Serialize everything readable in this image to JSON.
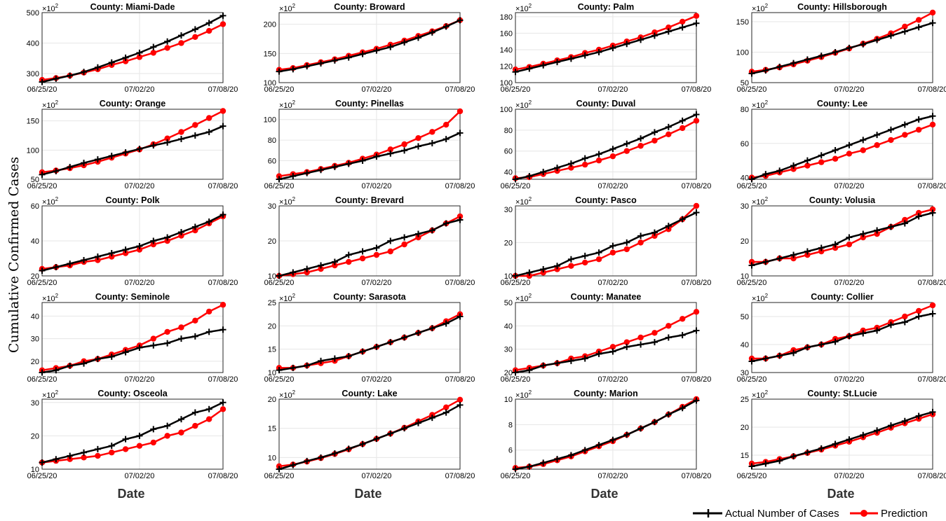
{
  "figure": {
    "ylabel": "Cumulative Confirmed Cases",
    "xlabel": "Date",
    "multiplier_base": "×10",
    "multiplier_exp": "2"
  },
  "legend": {
    "actual_label": "Actual Number of Cases",
    "prediction_label": "Prediction"
  },
  "colors": {
    "actual": "#000000",
    "prediction": "#ff0000",
    "grid": "#e6e6e6"
  },
  "chart_data": {
    "type": "line",
    "x": [
      "06/25/20",
      "06/26/20",
      "06/27/20",
      "06/28/20",
      "06/29/20",
      "06/30/20",
      "07/01/20",
      "07/02/20",
      "07/03/20",
      "07/04/20",
      "07/05/20",
      "07/06/20",
      "07/07/20",
      "07/08/20"
    ],
    "xticks": [
      "06/25/20",
      "07/02/20",
      "07/08/20"
    ],
    "y_unit_multiplier": 100,
    "panels": [
      {
        "title": "County: Miami-Dade",
        "ylim": [
          270,
          500
        ],
        "yticks": [
          300,
          400,
          500
        ],
        "actual": [
          272,
          283,
          293,
          305,
          320,
          336,
          352,
          368,
          387,
          405,
          425,
          445,
          466,
          490
        ],
        "prediction": [
          279,
          285,
          293,
          303,
          314,
          328,
          340,
          354,
          368,
          384,
          400,
          420,
          440,
          462
        ]
      },
      {
        "title": "County: Broward",
        "ylim": [
          100,
          220
        ],
        "yticks": [
          100,
          150,
          200
        ],
        "actual": [
          119,
          123,
          128,
          133,
          138,
          143,
          149,
          155,
          161,
          169,
          177,
          186,
          196,
          207
        ],
        "prediction": [
          122,
          125,
          130,
          135,
          140,
          146,
          152,
          158,
          165,
          172,
          180,
          188,
          197,
          207
        ]
      },
      {
        "title": "County: Palm",
        "ylim": [
          100,
          185
        ],
        "yticks": [
          100,
          120,
          140,
          160,
          180
        ],
        "actual": [
          113,
          117,
          121,
          125,
          129,
          133,
          137,
          142,
          147,
          152,
          157,
          162,
          167,
          172
        ],
        "prediction": [
          116,
          119,
          123,
          127,
          131,
          136,
          140,
          145,
          150,
          155,
          161,
          167,
          174,
          181
        ]
      },
      {
        "title": "County: Hillsborough",
        "ylim": [
          50,
          165
        ],
        "yticks": [
          50,
          100,
          150
        ],
        "actual": [
          65,
          70,
          76,
          82,
          88,
          94,
          100,
          107,
          113,
          120,
          127,
          134,
          141,
          148
        ],
        "prediction": [
          68,
          71,
          75,
          80,
          86,
          92,
          99,
          106,
          114,
          122,
          131,
          142,
          153,
          165
        ]
      },
      {
        "title": "County: Orange",
        "ylim": [
          50,
          170
        ],
        "yticks": [
          50,
          100,
          150
        ],
        "actual": [
          58,
          64,
          71,
          78,
          84,
          90,
          96,
          102,
          108,
          113,
          119,
          125,
          131,
          141
        ],
        "prediction": [
          62,
          65,
          69,
          74,
          80,
          87,
          94,
          101,
          110,
          120,
          131,
          143,
          155,
          167
        ]
      },
      {
        "title": "County: Pinellas",
        "ylim": [
          42,
          110
        ],
        "yticks": [
          60,
          80,
          100
        ],
        "actual": [
          42,
          45,
          48,
          51,
          54,
          57,
          60,
          64,
          67,
          70,
          74,
          77,
          81,
          87
        ],
        "prediction": [
          45,
          47,
          49,
          52,
          55,
          58,
          62,
          66,
          71,
          76,
          82,
          88,
          95,
          108
        ]
      },
      {
        "title": "County: Duval",
        "ylim": [
          33,
          100
        ],
        "yticks": [
          40,
          60,
          80,
          100
        ],
        "actual": [
          33,
          36,
          40,
          44,
          48,
          53,
          57,
          62,
          67,
          72,
          78,
          83,
          89,
          95
        ],
        "prediction": [
          34,
          35,
          38,
          41,
          44,
          47,
          51,
          55,
          60,
          65,
          70,
          76,
          82,
          89
        ]
      },
      {
        "title": "County: Lee",
        "ylim": [
          39,
          80
        ],
        "yticks": [
          40,
          60,
          80
        ],
        "actual": [
          39,
          42,
          44,
          47,
          50,
          53,
          56,
          59,
          62,
          65,
          68,
          71,
          74,
          76
        ],
        "prediction": [
          40,
          41,
          43,
          45,
          47,
          49,
          51,
          54,
          56,
          59,
          62,
          65,
          68,
          71
        ]
      },
      {
        "title": "County: Polk",
        "ylim": [
          20,
          60
        ],
        "yticks": [
          20,
          40,
          60
        ],
        "actual": [
          23,
          25,
          27,
          29,
          31,
          33,
          35,
          37,
          40,
          42,
          45,
          48,
          51,
          55
        ],
        "prediction": [
          24,
          25,
          26,
          28,
          29,
          31,
          33,
          35,
          38,
          40,
          43,
          46,
          50,
          54
        ]
      },
      {
        "title": "County: Brevard",
        "ylim": [
          10,
          30
        ],
        "yticks": [
          10,
          20,
          30
        ],
        "actual": [
          10,
          11,
          12,
          13,
          14,
          16,
          17,
          18,
          20,
          21,
          22,
          23,
          25,
          26
        ],
        "prediction": [
          10,
          10.5,
          11,
          12,
          13,
          14,
          15,
          16,
          17,
          19,
          21,
          23,
          25,
          27
        ]
      },
      {
        "title": "County: Pasco",
        "ylim": [
          10,
          31
        ],
        "yticks": [
          10,
          20,
          30
        ],
        "actual": [
          10,
          11,
          12,
          13,
          15,
          16,
          17,
          19,
          20,
          22,
          23,
          25,
          27,
          29
        ],
        "prediction": [
          10,
          10,
          11,
          12,
          13,
          14,
          15,
          17,
          18,
          20,
          22,
          24,
          27,
          31
        ]
      },
      {
        "title": "County: Volusia",
        "ylim": [
          10,
          30
        ],
        "yticks": [
          10,
          20,
          30
        ],
        "actual": [
          13,
          14,
          15,
          16,
          17,
          18,
          19,
          21,
          22,
          23,
          24,
          25,
          27,
          28
        ],
        "prediction": [
          14,
          14,
          15,
          15,
          16,
          17,
          18,
          19,
          21,
          22,
          24,
          26,
          28,
          29
        ]
      },
      {
        "title": "County: Seminole",
        "ylim": [
          15,
          46
        ],
        "yticks": [
          20,
          30,
          40
        ],
        "actual": [
          15,
          16,
          18,
          19,
          21,
          22,
          24,
          26,
          27,
          28,
          30,
          31,
          33,
          34
        ],
        "prediction": [
          16,
          17,
          18,
          20,
          21,
          23,
          25,
          27,
          30,
          33,
          35,
          38,
          42,
          45
        ]
      },
      {
        "title": "County: Sarasota",
        "ylim": [
          10,
          25
        ],
        "yticks": [
          10,
          15,
          20,
          25
        ],
        "actual": [
          10.5,
          11,
          11.5,
          12.5,
          13,
          13.5,
          14.5,
          15.5,
          16.5,
          17.5,
          18.5,
          19.5,
          20.5,
          22
        ],
        "prediction": [
          11,
          11,
          11.5,
          12,
          12.5,
          13.5,
          14.5,
          15.5,
          16.5,
          17.5,
          18.5,
          19.5,
          21,
          22.5
        ]
      },
      {
        "title": "County: Manatee",
        "ylim": [
          20,
          50
        ],
        "yticks": [
          20,
          30,
          40,
          50
        ],
        "actual": [
          20,
          21,
          23,
          24,
          25,
          26,
          28,
          29,
          31,
          32,
          33,
          35,
          36,
          38
        ],
        "prediction": [
          21,
          22,
          23,
          24,
          26,
          27,
          29,
          31,
          33,
          35,
          37,
          40,
          43,
          46
        ]
      },
      {
        "title": "County: Collier",
        "ylim": [
          30,
          55
        ],
        "yticks": [
          30,
          40,
          50
        ],
        "actual": [
          34,
          35,
          36,
          37,
          39,
          40,
          41,
          43,
          44,
          45,
          47,
          48,
          50,
          51
        ],
        "prediction": [
          35,
          35,
          36,
          38,
          39,
          40,
          42,
          43,
          45,
          46,
          48,
          50,
          52,
          54
        ]
      },
      {
        "title": "County: Osceola",
        "ylim": [
          10,
          31
        ],
        "yticks": [
          10,
          20,
          30
        ],
        "actual": [
          12,
          13,
          14,
          15,
          16,
          17,
          19,
          20,
          22,
          23,
          25,
          27,
          28,
          30
        ],
        "prediction": [
          12,
          12.5,
          13,
          13.5,
          14,
          15,
          16,
          17,
          18,
          20,
          21,
          23,
          25,
          28
        ]
      },
      {
        "title": "County: Lake",
        "ylim": [
          8,
          20
        ],
        "yticks": [
          10,
          15,
          20
        ],
        "actual": [
          8,
          8.7,
          9.4,
          10,
          10.7,
          11.5,
          12.3,
          13.2,
          14.1,
          15,
          15.9,
          16.8,
          17.7,
          19
        ],
        "prediction": [
          8.5,
          8.8,
          9.3,
          9.9,
          10.6,
          11.4,
          12.3,
          13.2,
          14.1,
          15.1,
          16.2,
          17.3,
          18.6,
          19.9
        ]
      },
      {
        "title": "County: Marion",
        "ylim": [
          4.5,
          10
        ],
        "yticks": [
          6,
          8,
          10
        ],
        "actual": [
          4.5,
          4.7,
          5,
          5.3,
          5.6,
          6,
          6.4,
          6.8,
          7.2,
          7.7,
          8.2,
          8.8,
          9.3,
          9.9
        ],
        "prediction": [
          4.6,
          4.7,
          4.9,
          5.2,
          5.5,
          5.9,
          6.3,
          6.7,
          7.2,
          7.7,
          8.2,
          8.8,
          9.4,
          10
        ]
      },
      {
        "title": "County: St.Lucie",
        "ylim": [
          12.5,
          25
        ],
        "yticks": [
          15,
          20,
          25
        ],
        "actual": [
          13,
          13.5,
          14,
          14.8,
          15.5,
          16.2,
          17,
          17.8,
          18.6,
          19.4,
          20.3,
          21.1,
          22,
          22.7
        ],
        "prediction": [
          13.5,
          13.8,
          14.3,
          14.8,
          15.4,
          16,
          16.7,
          17.4,
          18.2,
          19,
          19.9,
          20.7,
          21.5,
          22.3
        ]
      }
    ]
  }
}
